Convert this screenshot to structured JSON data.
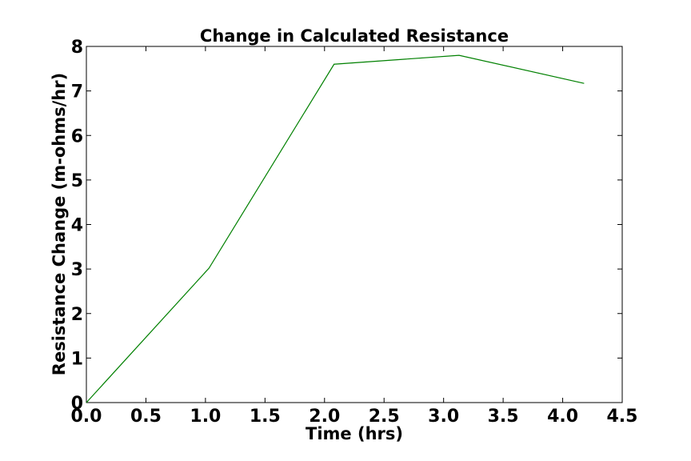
{
  "colors": {
    "background": "#ffffff",
    "axes": "#000000",
    "series_line": "#008000"
  },
  "chart_data": {
    "type": "line",
    "title": "Change in Calculated Resistance",
    "xlabel": "Time (hrs)",
    "ylabel": "Resistance Change (m-ohms/hr)",
    "xlim": [
      0.0,
      4.5
    ],
    "ylim": [
      0,
      8
    ],
    "x_ticks": [
      "0.0",
      "0.5",
      "1.0",
      "1.5",
      "2.0",
      "2.5",
      "3.0",
      "3.5",
      "4.0",
      "4.5"
    ],
    "y_ticks": [
      "0",
      "1",
      "2",
      "3",
      "4",
      "5",
      "6",
      "7",
      "8"
    ],
    "grid": false,
    "legend": "none",
    "series": [
      {
        "color": "#008000",
        "x": [
          0.0,
          1.03,
          2.08,
          3.13,
          4.18
        ],
        "y": [
          0.0,
          3.02,
          7.6,
          7.8,
          7.17
        ]
      }
    ]
  }
}
